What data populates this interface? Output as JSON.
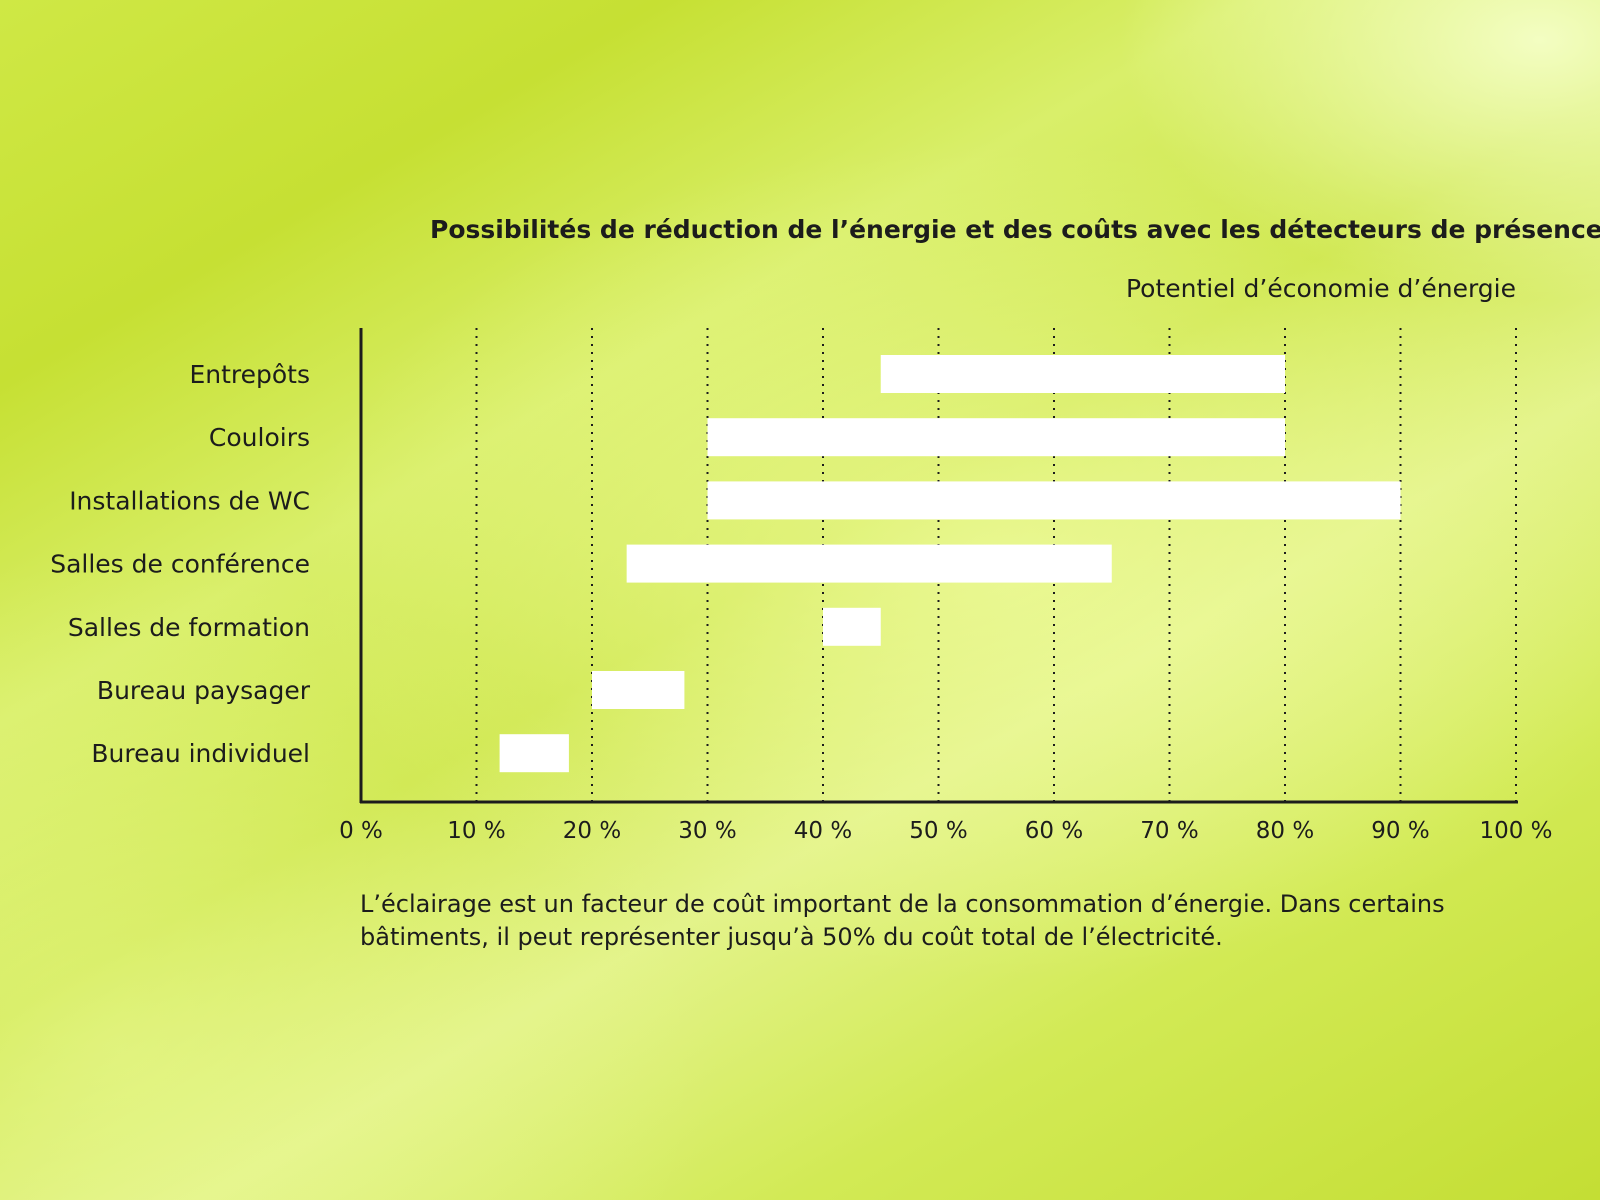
{
  "chart_data": {
    "type": "bar",
    "orientation": "horizontal",
    "floating_ranges": true,
    "title": "Possibilités de réduction de l’énergie et des coûts avec les détecteurs de présence",
    "subtitle": "Potentiel d’économie d’énergie",
    "categories": [
      "Entrepôts",
      "Couloirs",
      "Installations de WC",
      "Salles de conférence",
      "Salles de formation",
      "Bureau paysager",
      "Bureau individuel"
    ],
    "ranges": [
      [
        45,
        80
      ],
      [
        30,
        80
      ],
      [
        30,
        90
      ],
      [
        23,
        65
      ],
      [
        40,
        45
      ],
      [
        20,
        28
      ],
      [
        12,
        18
      ]
    ],
    "xlim": [
      0,
      100
    ],
    "xticks": [
      0,
      10,
      20,
      30,
      40,
      50,
      60,
      70,
      80,
      90,
      100
    ],
    "xtick_labels": [
      "0 %",
      "10 %",
      "20 %",
      "30 %",
      "40 %",
      "50 %",
      "60 %",
      "70 %",
      "80 %",
      "90 %",
      "100 %"
    ],
    "grid": "vertical dotted",
    "bar_color": "#ffffff",
    "text_color": "#1c1c1c"
  },
  "footnote": "L’éclairage est un facteur de coût important de la consommation d’énergie. Dans certains bâtiments, il peut représenter jusqu’à 50% du coût total de l’électricité."
}
